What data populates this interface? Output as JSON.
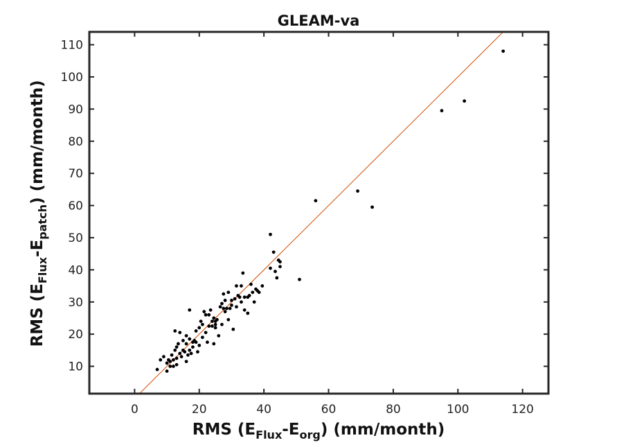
{
  "chart_data": {
    "type": "scatter",
    "title": "GLEAM-va",
    "xlabel": {
      "prefix": "RMS (E",
      "sub1": "Flux",
      "mid": "-E",
      "sub2": "org",
      "suffix": ") (mm/month)"
    },
    "ylabel": {
      "prefix": "RMS (E",
      "sub1": "Flux",
      "mid": "-E",
      "sub2": "patch",
      "suffix": ") (mm/month)"
    },
    "xlim": [
      -14,
      128
    ],
    "ylim": [
      1.5,
      114
    ],
    "xticks": [
      0,
      20,
      40,
      60,
      80,
      100,
      120
    ],
    "yticks": [
      10,
      20,
      30,
      40,
      50,
      60,
      70,
      80,
      90,
      100,
      110
    ],
    "grid": false,
    "reference_line": {
      "type": "1:1",
      "x": [
        1,
        114
      ],
      "y": [
        1,
        114
      ],
      "color": "#d24a00"
    },
    "marker_color": "#000000",
    "points": [
      [
        7,
        9
      ],
      [
        8,
        12
      ],
      [
        9,
        13
      ],
      [
        10,
        8.5
      ],
      [
        10,
        11
      ],
      [
        10.5,
        12
      ],
      [
        11,
        10
      ],
      [
        11,
        11.5
      ],
      [
        11.5,
        13.5
      ],
      [
        12,
        10
      ],
      [
        12,
        12
      ],
      [
        12.5,
        15
      ],
      [
        12.5,
        21
      ],
      [
        13,
        16
      ],
      [
        13,
        12.5
      ],
      [
        13,
        10.5
      ],
      [
        13.5,
        17
      ],
      [
        14,
        20.5
      ],
      [
        14,
        14
      ],
      [
        14.5,
        13
      ],
      [
        15,
        15
      ],
      [
        15,
        18
      ],
      [
        15.5,
        14.5
      ],
      [
        16,
        11.5
      ],
      [
        16,
        17
      ],
      [
        16,
        19.5
      ],
      [
        16.5,
        13.5
      ],
      [
        17,
        15
      ],
      [
        17,
        27.5
      ],
      [
        17,
        18.5
      ],
      [
        17.5,
        14
      ],
      [
        18,
        16
      ],
      [
        18,
        17.5
      ],
      [
        18.5,
        18
      ],
      [
        19,
        17.5
      ],
      [
        19,
        21
      ],
      [
        19.5,
        14.5
      ],
      [
        20,
        22
      ],
      [
        20,
        16.5
      ],
      [
        20.5,
        24
      ],
      [
        21,
        19
      ],
      [
        21,
        23
      ],
      [
        21.5,
        27
      ],
      [
        22,
        26
      ],
      [
        22,
        20.5
      ],
      [
        22.5,
        17.5
      ],
      [
        23,
        22.5
      ],
      [
        23,
        26
      ],
      [
        23.5,
        27.5
      ],
      [
        24,
        24
      ],
      [
        24,
        22.5
      ],
      [
        24.5,
        25
      ],
      [
        24.5,
        17
      ],
      [
        25,
        23
      ],
      [
        25,
        24
      ],
      [
        25,
        22
      ],
      [
        25.5,
        24.5
      ],
      [
        26,
        19.5
      ],
      [
        26.5,
        28.5
      ],
      [
        27,
        23
      ],
      [
        27,
        29.5
      ],
      [
        27.5,
        28
      ],
      [
        27.5,
        32.5
      ],
      [
        28,
        30.5
      ],
      [
        28,
        27
      ],
      [
        28.5,
        28
      ],
      [
        29,
        24.5
      ],
      [
        29,
        33
      ],
      [
        29.5,
        28
      ],
      [
        30,
        29
      ],
      [
        30,
        30.5
      ],
      [
        30.5,
        21.5
      ],
      [
        31,
        31
      ],
      [
        31.5,
        28.5
      ],
      [
        31.5,
        35
      ],
      [
        32,
        32
      ],
      [
        32.5,
        31.5
      ],
      [
        33,
        35
      ],
      [
        33,
        30
      ],
      [
        33.5,
        39
      ],
      [
        34,
        31.5
      ],
      [
        34,
        27.5
      ],
      [
        35,
        31.5
      ],
      [
        35,
        26.5
      ],
      [
        35.5,
        32
      ],
      [
        36,
        35.5
      ],
      [
        36.5,
        33
      ],
      [
        37,
        30
      ],
      [
        37.5,
        34
      ],
      [
        38,
        33.5
      ],
      [
        38.5,
        33
      ],
      [
        39.5,
        35
      ],
      [
        42,
        51
      ],
      [
        42,
        40.5
      ],
      [
        43,
        45.5
      ],
      [
        43.5,
        39.5
      ],
      [
        44,
        37.5
      ],
      [
        44.5,
        43
      ],
      [
        45,
        41
      ],
      [
        45,
        42.5
      ],
      [
        51,
        37
      ],
      [
        56,
        61.5
      ],
      [
        69,
        64.5
      ],
      [
        73.5,
        59.5
      ],
      [
        95,
        89.5
      ],
      [
        102,
        92.5
      ],
      [
        114,
        108
      ]
    ]
  }
}
